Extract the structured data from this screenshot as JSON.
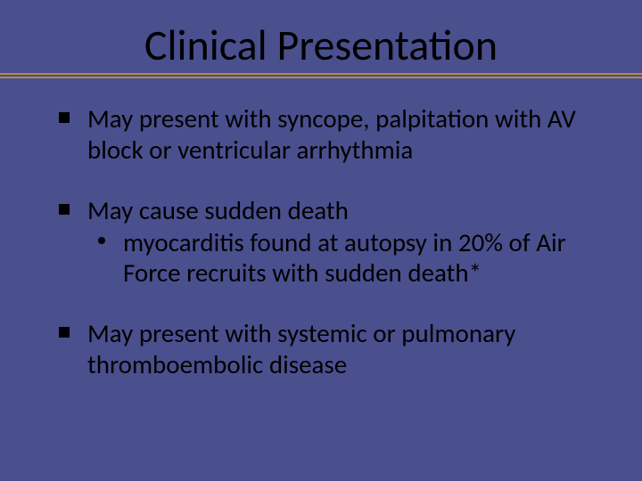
{
  "slide": {
    "background_color": "#4a4f8e",
    "title": {
      "text": "Clinical Presentation",
      "color": "#000000",
      "fontsize": 48,
      "rule_color": "#b08a4a"
    },
    "body_color": "#000000",
    "body_fontsize": 29,
    "bullets": [
      {
        "text": "May present with syncope, palpitation with AV block or ventricular arrhythmia",
        "sub": []
      },
      {
        "text": "May cause sudden death",
        "sub": [
          {
            "text": "myocarditis found at autopsy in 20% of Air Force recruits with sudden death*"
          }
        ]
      },
      {
        "text": "May present with systemic or pulmonary thromboembolic disease",
        "sub": []
      }
    ]
  }
}
